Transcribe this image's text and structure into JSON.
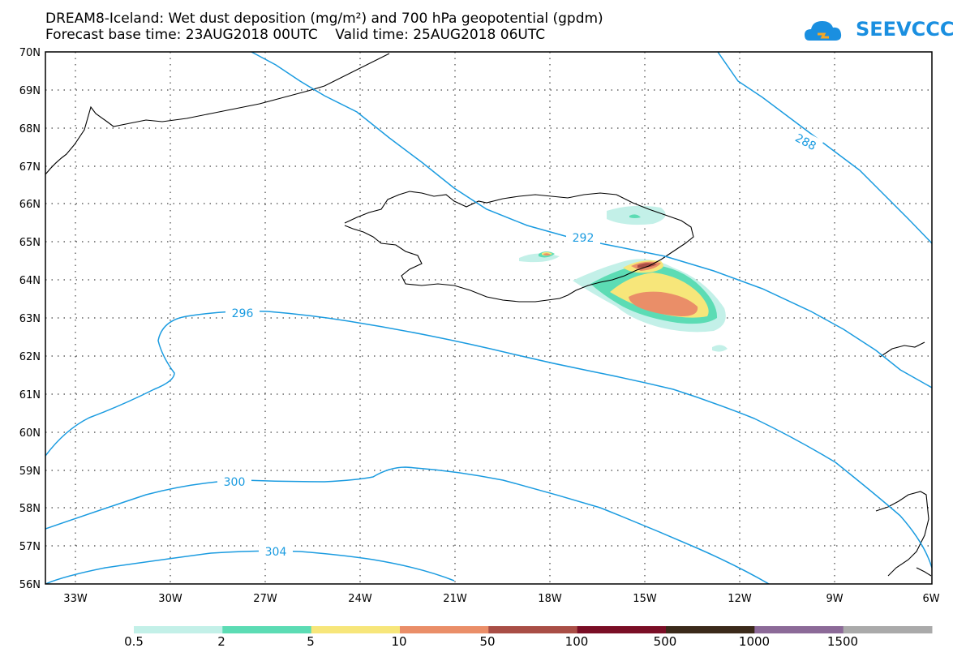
{
  "title_line1": "DREAM8-Iceland: Wet dust deposition (mg/m²) and 700 hPa geopotential (gpdm)",
  "title_line2": "Forecast base time: 23AUG2018 00UTC    Valid time: 25AUG2018 06UTC",
  "logo": {
    "text": "SEEVCCC",
    "icon": "cloud-icon",
    "color": "#1a8fe0"
  },
  "map": {
    "lat_labels": [
      "70N",
      "69N",
      "68N",
      "67N",
      "66N",
      "65N",
      "64N",
      "63N",
      "62N",
      "61N",
      "60N",
      "59N",
      "58N",
      "57N",
      "56N"
    ],
    "lon_labels": [
      "33W",
      "30W",
      "27W",
      "24W",
      "21W",
      "18W",
      "15W",
      "12W",
      "9W",
      "6W"
    ],
    "contour_labels": [
      "288",
      "292",
      "296",
      "300",
      "304"
    ],
    "contour_color": "#1a9be0",
    "coast_color": "#000000"
  },
  "colorbar": {
    "labels": [
      "0.5",
      "2",
      "5",
      "10",
      "50",
      "100",
      "500",
      "1000",
      "1500"
    ],
    "colors": [
      "#c3f0e8",
      "#5cdcb4",
      "#f7e67a",
      "#ea8e68",
      "#a94e46",
      "#7a0e26",
      "#3b2a1a",
      "#8c6a98",
      "#aaaaaa"
    ]
  }
}
